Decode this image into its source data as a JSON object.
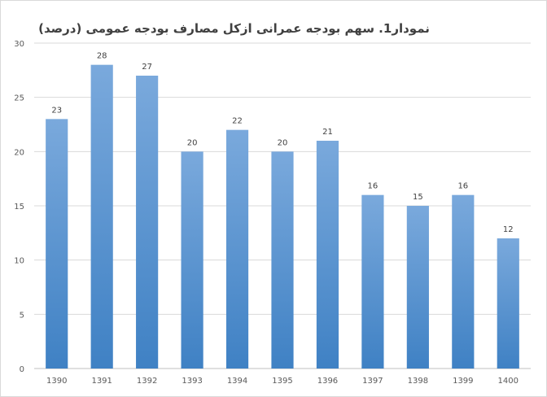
{
  "chart_data": {
    "type": "bar",
    "title": "نمودار1. سهم بودجه عمرانی ازکل مصارف بودجه عمومی (درصد)",
    "xlabel": "",
    "ylabel": "",
    "categories": [
      "1390",
      "1391",
      "1392",
      "1393",
      "1394",
      "1395",
      "1396",
      "1397",
      "1398",
      "1399",
      "1400"
    ],
    "values": [
      23,
      28,
      27,
      20,
      22,
      20,
      21,
      16,
      15,
      16,
      12
    ],
    "ylim": [
      0,
      30
    ],
    "yticks": [
      0,
      5,
      10,
      15,
      20,
      25,
      30
    ],
    "grid": true,
    "legend": "none",
    "data_labels": true,
    "colors": {
      "bar_top": "#7aa9dc",
      "bar_bottom": "#3f81c4"
    }
  }
}
